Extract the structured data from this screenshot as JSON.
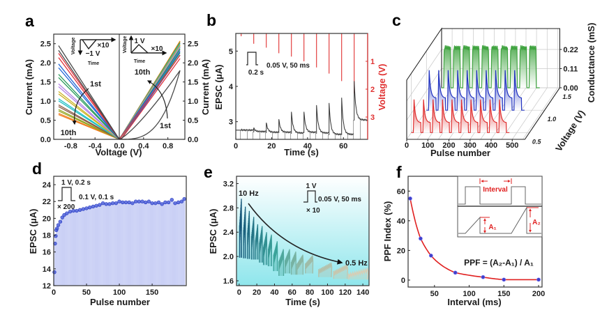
{
  "figure": {
    "panel_labels": [
      "a",
      "b",
      "c",
      "d",
      "e",
      "f"
    ]
  },
  "chart_data": [
    {
      "panel": "a",
      "type": "line",
      "xlabel": "Voltage (V)",
      "ylabel": "Current (mA)",
      "ylabel_right": "Current (mA)",
      "xlim": [
        -1.08,
        1.08
      ],
      "ylim": [
        0,
        2.75
      ],
      "xticks": [
        -0.8,
        -0.4,
        0,
        0.4,
        0.8
      ],
      "xtick_labels": [
        "-0.8",
        "-0.4",
        "0.0",
        "0.4",
        "0.8"
      ],
      "yticks": [
        0,
        0.5,
        1,
        1.5,
        2,
        2.5
      ],
      "ytick_labels": [
        "0.0",
        "0.5",
        "1.0",
        "1.5",
        "2.0",
        "2.5"
      ],
      "sweeps": [
        {
          "color": "#4a4a4a",
          "current_at_minus_1V": 2.45,
          "current_at_plus_1V": 1.8
        },
        {
          "color": "#e0303a",
          "current_at_minus_1V": 2.25,
          "current_at_plus_1V": 2.2
        },
        {
          "color": "#2066d6",
          "current_at_minus_1V": 1.97,
          "current_at_plus_1V": 2.3
        },
        {
          "color": "#2a9a5a",
          "current_at_minus_1V": 1.7,
          "current_at_plus_1V": 2.36
        },
        {
          "color": "#b383e6",
          "current_at_minus_1V": 1.45,
          "current_at_plus_1V": 2.42
        },
        {
          "color": "#cbb223",
          "current_at_minus_1V": 1.25,
          "current_at_plus_1V": 2.46
        },
        {
          "color": "#1fbfc4",
          "current_at_minus_1V": 1.06,
          "current_at_plus_1V": 2.5
        },
        {
          "color": "#8a5a44",
          "current_at_minus_1V": 0.9,
          "current_at_plus_1V": 2.52
        },
        {
          "color": "#93a622",
          "current_at_minus_1V": 0.78,
          "current_at_plus_1V": 2.55
        },
        {
          "color": "#f07e1e",
          "current_at_minus_1V": 0.68,
          "current_at_plus_1V": 2.57
        }
      ],
      "annotations": {
        "neg_first": "1st",
        "neg_last": "10th",
        "pos_first": "1st",
        "pos_last": "10th"
      },
      "inset_negative": {
        "axis_y": "Voltage",
        "axis_x": "Time",
        "amplitude": "−1 V",
        "repeat": "×10"
      },
      "inset_positive": {
        "axis_y": "Voltage",
        "axis_x": "Time",
        "amplitude": "1 V",
        "repeat": "×10"
      }
    },
    {
      "panel": "b",
      "type": "line",
      "xlabel": "Time (s)",
      "ylabel": "EPSC (μA)",
      "ylabel_right": "Voltage (V)",
      "xlim": [
        0,
        73.5
      ],
      "ylim": [
        2.5,
        5.5
      ],
      "ylim_right": [
        0,
        3.8
      ],
      "right_axis_inverted": true,
      "xticks": [
        0,
        20,
        40,
        60
      ],
      "xtick_labels": [
        "0",
        "20",
        "40",
        "60"
      ],
      "yticks": [
        3,
        4,
        5
      ],
      "ytick_labels": [
        "3",
        "4",
        "5"
      ],
      "yticks_right": [
        1,
        2,
        3
      ],
      "ytick_labels_right": [
        "1",
        "2",
        "3"
      ],
      "pulse_times": [
        3,
        10,
        17,
        24,
        31,
        38,
        45,
        52,
        59,
        66
      ],
      "epsc_baseline": [
        2.76,
        2.72,
        2.7,
        2.7,
        2.68,
        2.7,
        2.68,
        2.64,
        2.64,
        3.05
      ],
      "epsc_peak": [
        2.77,
        2.82,
        2.97,
        3.07,
        3.28,
        3.28,
        3.47,
        3.53,
        3.68,
        4.15
      ],
      "voltage_amplitude": [
        0.1,
        0.37,
        0.51,
        0.71,
        0.83,
        1.0,
        1.22,
        1.44,
        1.71,
        2.15
      ],
      "colors": {
        "epsc": "#333333",
        "voltage": "#e03030"
      },
      "inset": {
        "width_label": "0.2 s",
        "read_label": "0.05 V, 50 ms"
      }
    },
    {
      "panel": "c",
      "type": "line3d",
      "xlabel": "Pulse number",
      "ylabel": "Voltage (V)",
      "zlabel": "Conductance (mS)",
      "xlim": [
        0,
        560
      ],
      "ylim": [
        0.35,
        1.5
      ],
      "zlim": [
        0,
        0.34
      ],
      "xticks": [
        0,
        100,
        200,
        300,
        400,
        500
      ],
      "xtick_labels": [
        "0",
        "100",
        "200",
        "300",
        "400",
        "500"
      ],
      "yticks": [
        0.5,
        1.0,
        1.5
      ],
      "ytick_labels": [
        "0.5",
        "1.0",
        "1.5"
      ],
      "zticks": [
        0,
        0.11,
        0.22
      ],
      "ztick_labels": [
        "0.00",
        "0.11",
        "0.22"
      ],
      "pulse_trains": 10,
      "series": [
        {
          "voltage": 1.5,
          "color": "#3fa33f",
          "peak_conductance": 0.25,
          "shape": "plateau"
        },
        {
          "voltage": 1.0,
          "color": "#2233c0",
          "peak_conductance": 0.23,
          "shape": "decay"
        },
        {
          "voltage": 0.5,
          "color": "#e03030",
          "peak_conductance": 0.19,
          "shape": "decay"
        }
      ]
    },
    {
      "panel": "d",
      "type": "bar+scatter",
      "xlabel": "Pulse number",
      "ylabel": "EPSC (μA)",
      "xlim": [
        0,
        202
      ],
      "ylim": [
        12,
        25
      ],
      "xticks": [
        0,
        50,
        100,
        150
      ],
      "xtick_labels": [
        "0",
        "50",
        "100",
        "150"
      ],
      "yticks": [
        12,
        14,
        16,
        18,
        20,
        22,
        24
      ],
      "ytick_labels": [
        "12",
        "14",
        "16",
        "18",
        "20",
        "22",
        "24"
      ],
      "pulse_number": [
        1,
        2,
        3,
        4,
        5,
        7,
        10,
        13,
        16,
        20,
        25,
        30,
        35,
        40,
        45,
        50,
        55,
        60,
        65,
        70,
        75,
        80,
        85,
        90,
        95,
        100,
        105,
        110,
        115,
        120,
        125,
        130,
        135,
        140,
        145,
        150,
        155,
        160,
        165,
        170,
        175,
        180,
        185,
        190,
        195,
        199
      ],
      "epsc": [
        13.6,
        17.0,
        17.9,
        18.6,
        18.8,
        19.2,
        19.6,
        20.1,
        20.4,
        20.6,
        20.8,
        20.9,
        20.9,
        21.0,
        21.1,
        21.2,
        21.3,
        21.4,
        21.5,
        21.6,
        21.8,
        21.7,
        21.7,
        21.8,
        21.8,
        22.0,
        21.9,
        21.9,
        21.9,
        21.8,
        22.0,
        22.0,
        22.0,
        21.9,
        22.0,
        21.8,
        21.8,
        21.9,
        21.7,
        21.9,
        21.9,
        22.2,
        21.8,
        21.9,
        22.0,
        22.3
      ],
      "colors": {
        "points": "#3a4fd6",
        "bars": "#b9c1f2"
      },
      "inset": {
        "high": "1 V, 0.2 s",
        "low": "0.1 V, 0.1 s",
        "repeat": "× 200"
      }
    },
    {
      "panel": "e",
      "type": "line",
      "xlabel": "Time (s)",
      "ylabel": "EPSC (μA)",
      "xlim": [
        -3,
        147
      ],
      "ylim": [
        1.52,
        3.32
      ],
      "xticks": [
        0,
        20,
        40,
        60,
        80,
        100,
        120,
        140
      ],
      "xtick_labels": [
        "0",
        "20",
        "40",
        "60",
        "80",
        "100",
        "120",
        "140"
      ],
      "yticks": [
        1.6,
        2.0,
        2.4,
        2.8,
        3.2
      ],
      "ytick_labels": [
        "1.6",
        "2.0",
        "2.4",
        "2.8",
        "3.2"
      ],
      "groups": [
        {
          "t_start": 0.5,
          "t_end": 2.5,
          "base": 1.98,
          "peak": 2.95
        },
        {
          "t_start": 5,
          "t_end": 7,
          "base": 1.97,
          "peak": 2.82
        },
        {
          "t_start": 9.5,
          "t_end": 11.5,
          "base": 1.96,
          "peak": 2.75
        },
        {
          "t_start": 14,
          "t_end": 16.5,
          "base": 1.95,
          "peak": 2.65
        },
        {
          "t_start": 18.5,
          "t_end": 21,
          "base": 1.95,
          "peak": 2.53
        },
        {
          "t_start": 23,
          "t_end": 26,
          "base": 1.9,
          "peak": 2.5
        },
        {
          "t_start": 27.5,
          "t_end": 31,
          "base": 1.86,
          "peak": 2.4
        },
        {
          "t_start": 33,
          "t_end": 36.5,
          "base": 1.84,
          "peak": 2.36
        },
        {
          "t_start": 39,
          "t_end": 43,
          "base": 1.76,
          "peak": 2.25
        },
        {
          "t_start": 45,
          "t_end": 50,
          "base": 1.68,
          "peak": 2.12
        },
        {
          "t_start": 52,
          "t_end": 57,
          "base": 1.72,
          "peak": 2.12
        },
        {
          "t_start": 59,
          "t_end": 64,
          "base": 1.7,
          "peak": 2.08
        },
        {
          "t_start": 65.5,
          "t_end": 72,
          "base": 1.7,
          "peak": 2.03
        },
        {
          "t_start": 75,
          "t_end": 83,
          "base": 1.72,
          "peak": 2.02
        },
        {
          "t_start": 90,
          "t_end": 104,
          "base": 1.66,
          "peak": 1.9
        },
        {
          "t_start": 107,
          "t_end": 122,
          "base": 1.63,
          "peak": 1.87
        },
        {
          "t_start": 124,
          "t_end": 145,
          "base": 1.62,
          "peak": 1.8
        }
      ],
      "colors": {
        "first_group": "#17587a",
        "middle_group": "#3aa39a",
        "last_group": "#dccbb0",
        "background_top": "#ffffff",
        "background_bottom": "#8fe6ec"
      },
      "annotations": {
        "start_frequency": "10 Hz",
        "end_frequency": "0.5 Hz"
      },
      "inset": {
        "high": "1 V",
        "low": "0.05 V, 50 ms",
        "repeat": "× 10"
      }
    },
    {
      "panel": "f",
      "type": "scatter",
      "xlabel": "Interval (ms)",
      "ylabel": "PPF Index (%)",
      "xlim": [
        12,
        205
      ],
      "ylim": [
        -4.7,
        70
      ],
      "xticks": [
        50,
        100,
        150,
        200
      ],
      "xtick_labels": [
        "50",
        "100",
        "150",
        "200"
      ],
      "yticks": [
        0,
        20,
        40,
        60
      ],
      "ytick_labels": [
        "0",
        "20",
        "40",
        "60"
      ],
      "points": {
        "x": [
          15,
          30,
          45,
          80,
          120,
          150,
          200
        ],
        "y": [
          55,
          28,
          16.5,
          5,
          2,
          0.3,
          0.3
        ]
      },
      "fit": "exponential decay",
      "colors": {
        "points": "#4040c8",
        "fit": "#e02020",
        "inset_annotation": "#e02020"
      },
      "inset": {
        "interval": "Interval",
        "a1": "A₁",
        "a2": "A₂"
      },
      "formula": "PPF = (A₂-A₁) / A₁"
    }
  ]
}
